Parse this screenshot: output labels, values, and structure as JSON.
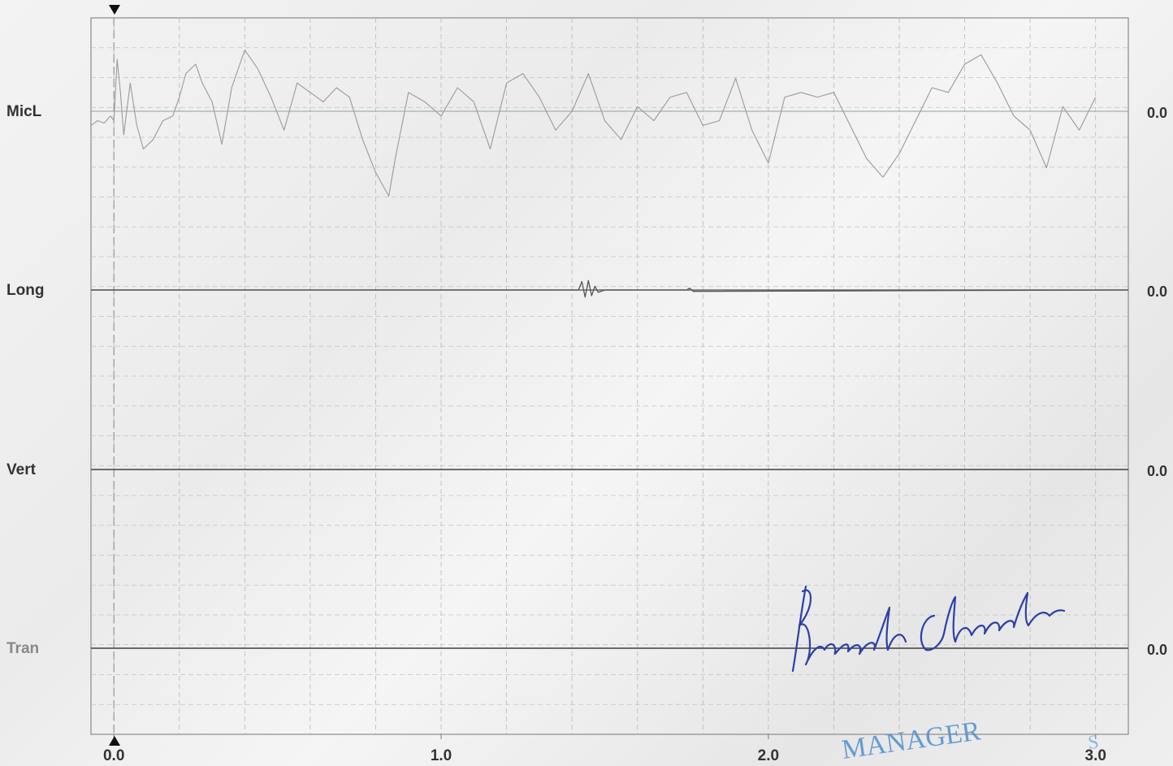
{
  "chart_data": {
    "type": "line",
    "x_ticks": [
      "0.0",
      "1.0",
      "2.0",
      "3.0"
    ],
    "xlim": [
      -0.07,
      3.1
    ],
    "grid": true,
    "cursor_x": 0.0,
    "channels": [
      {
        "name": "MicL",
        "readout": "0.0",
        "color": "#9a9a9a",
        "label_faded": false,
        "x": [
          -0.07,
          -0.05,
          -0.03,
          -0.01,
          0.0,
          0.01,
          0.02,
          0.03,
          0.05,
          0.07,
          0.09,
          0.12,
          0.15,
          0.18,
          0.2,
          0.22,
          0.25,
          0.27,
          0.3,
          0.33,
          0.36,
          0.4,
          0.44,
          0.48,
          0.52,
          0.56,
          0.6,
          0.64,
          0.68,
          0.72,
          0.76,
          0.8,
          0.84,
          0.86,
          0.9,
          0.95,
          1.0,
          1.05,
          1.1,
          1.15,
          1.2,
          1.25,
          1.3,
          1.35,
          1.4,
          1.45,
          1.5,
          1.55,
          1.6,
          1.65,
          1.7,
          1.75,
          1.8,
          1.85,
          1.9,
          1.95,
          2.0,
          2.05,
          2.1,
          2.15,
          2.2,
          2.25,
          2.3,
          2.35,
          2.4,
          2.45,
          2.5,
          2.55,
          2.6,
          2.65,
          2.7,
          2.75,
          2.8,
          2.85,
          2.9,
          2.95,
          3.0
        ],
        "y": [
          -0.3,
          -0.2,
          -0.25,
          -0.1,
          -0.2,
          1.1,
          0.4,
          -0.5,
          0.6,
          -0.3,
          -0.8,
          -0.6,
          -0.2,
          -0.1,
          0.3,
          0.8,
          1.0,
          0.6,
          0.2,
          -0.7,
          0.5,
          1.3,
          0.9,
          0.3,
          -0.4,
          0.6,
          0.4,
          0.2,
          0.5,
          0.3,
          -0.6,
          -1.3,
          -1.8,
          -1.0,
          0.4,
          0.2,
          -0.1,
          0.5,
          0.2,
          -0.8,
          0.6,
          0.8,
          0.3,
          -0.4,
          0.0,
          0.8,
          -0.2,
          -0.6,
          0.1,
          -0.2,
          0.3,
          0.4,
          -0.3,
          -0.2,
          0.7,
          -0.4,
          -1.1,
          0.3,
          0.4,
          0.3,
          0.4,
          -0.3,
          -1.0,
          -1.4,
          -0.9,
          -0.2,
          0.5,
          0.4,
          1.0,
          1.2,
          0.6,
          -0.1,
          -0.4,
          -1.2,
          0.1,
          -0.4,
          0.3
        ]
      },
      {
        "name": "Long",
        "readout": "0.0",
        "color": "#555555",
        "label_faded": false,
        "x": [
          -0.07,
          1.2,
          1.42,
          1.43,
          1.44,
          1.45,
          1.46,
          1.47,
          1.48,
          1.5,
          1.6,
          1.75,
          1.76,
          1.77,
          3.1
        ],
        "y": [
          0,
          0,
          0,
          0.18,
          -0.15,
          0.2,
          -0.12,
          0.08,
          -0.05,
          0,
          0,
          0,
          0.04,
          -0.03,
          0
        ]
      },
      {
        "name": "Vert",
        "readout": "0.0",
        "color": "#444444",
        "label_faded": false,
        "x": [
          -0.07,
          3.1
        ],
        "y": [
          0,
          0
        ]
      },
      {
        "name": "Tran",
        "readout": "0.0",
        "color": "#444444",
        "label_faded": true,
        "x": [
          -0.07,
          3.1
        ],
        "y": [
          0,
          0
        ]
      }
    ]
  },
  "signature": {
    "text": "Prakash Chandra",
    "color": "#2c3fa8"
  },
  "stamp": {
    "text": "MANAGER",
    "color": "#4f8fcf"
  }
}
